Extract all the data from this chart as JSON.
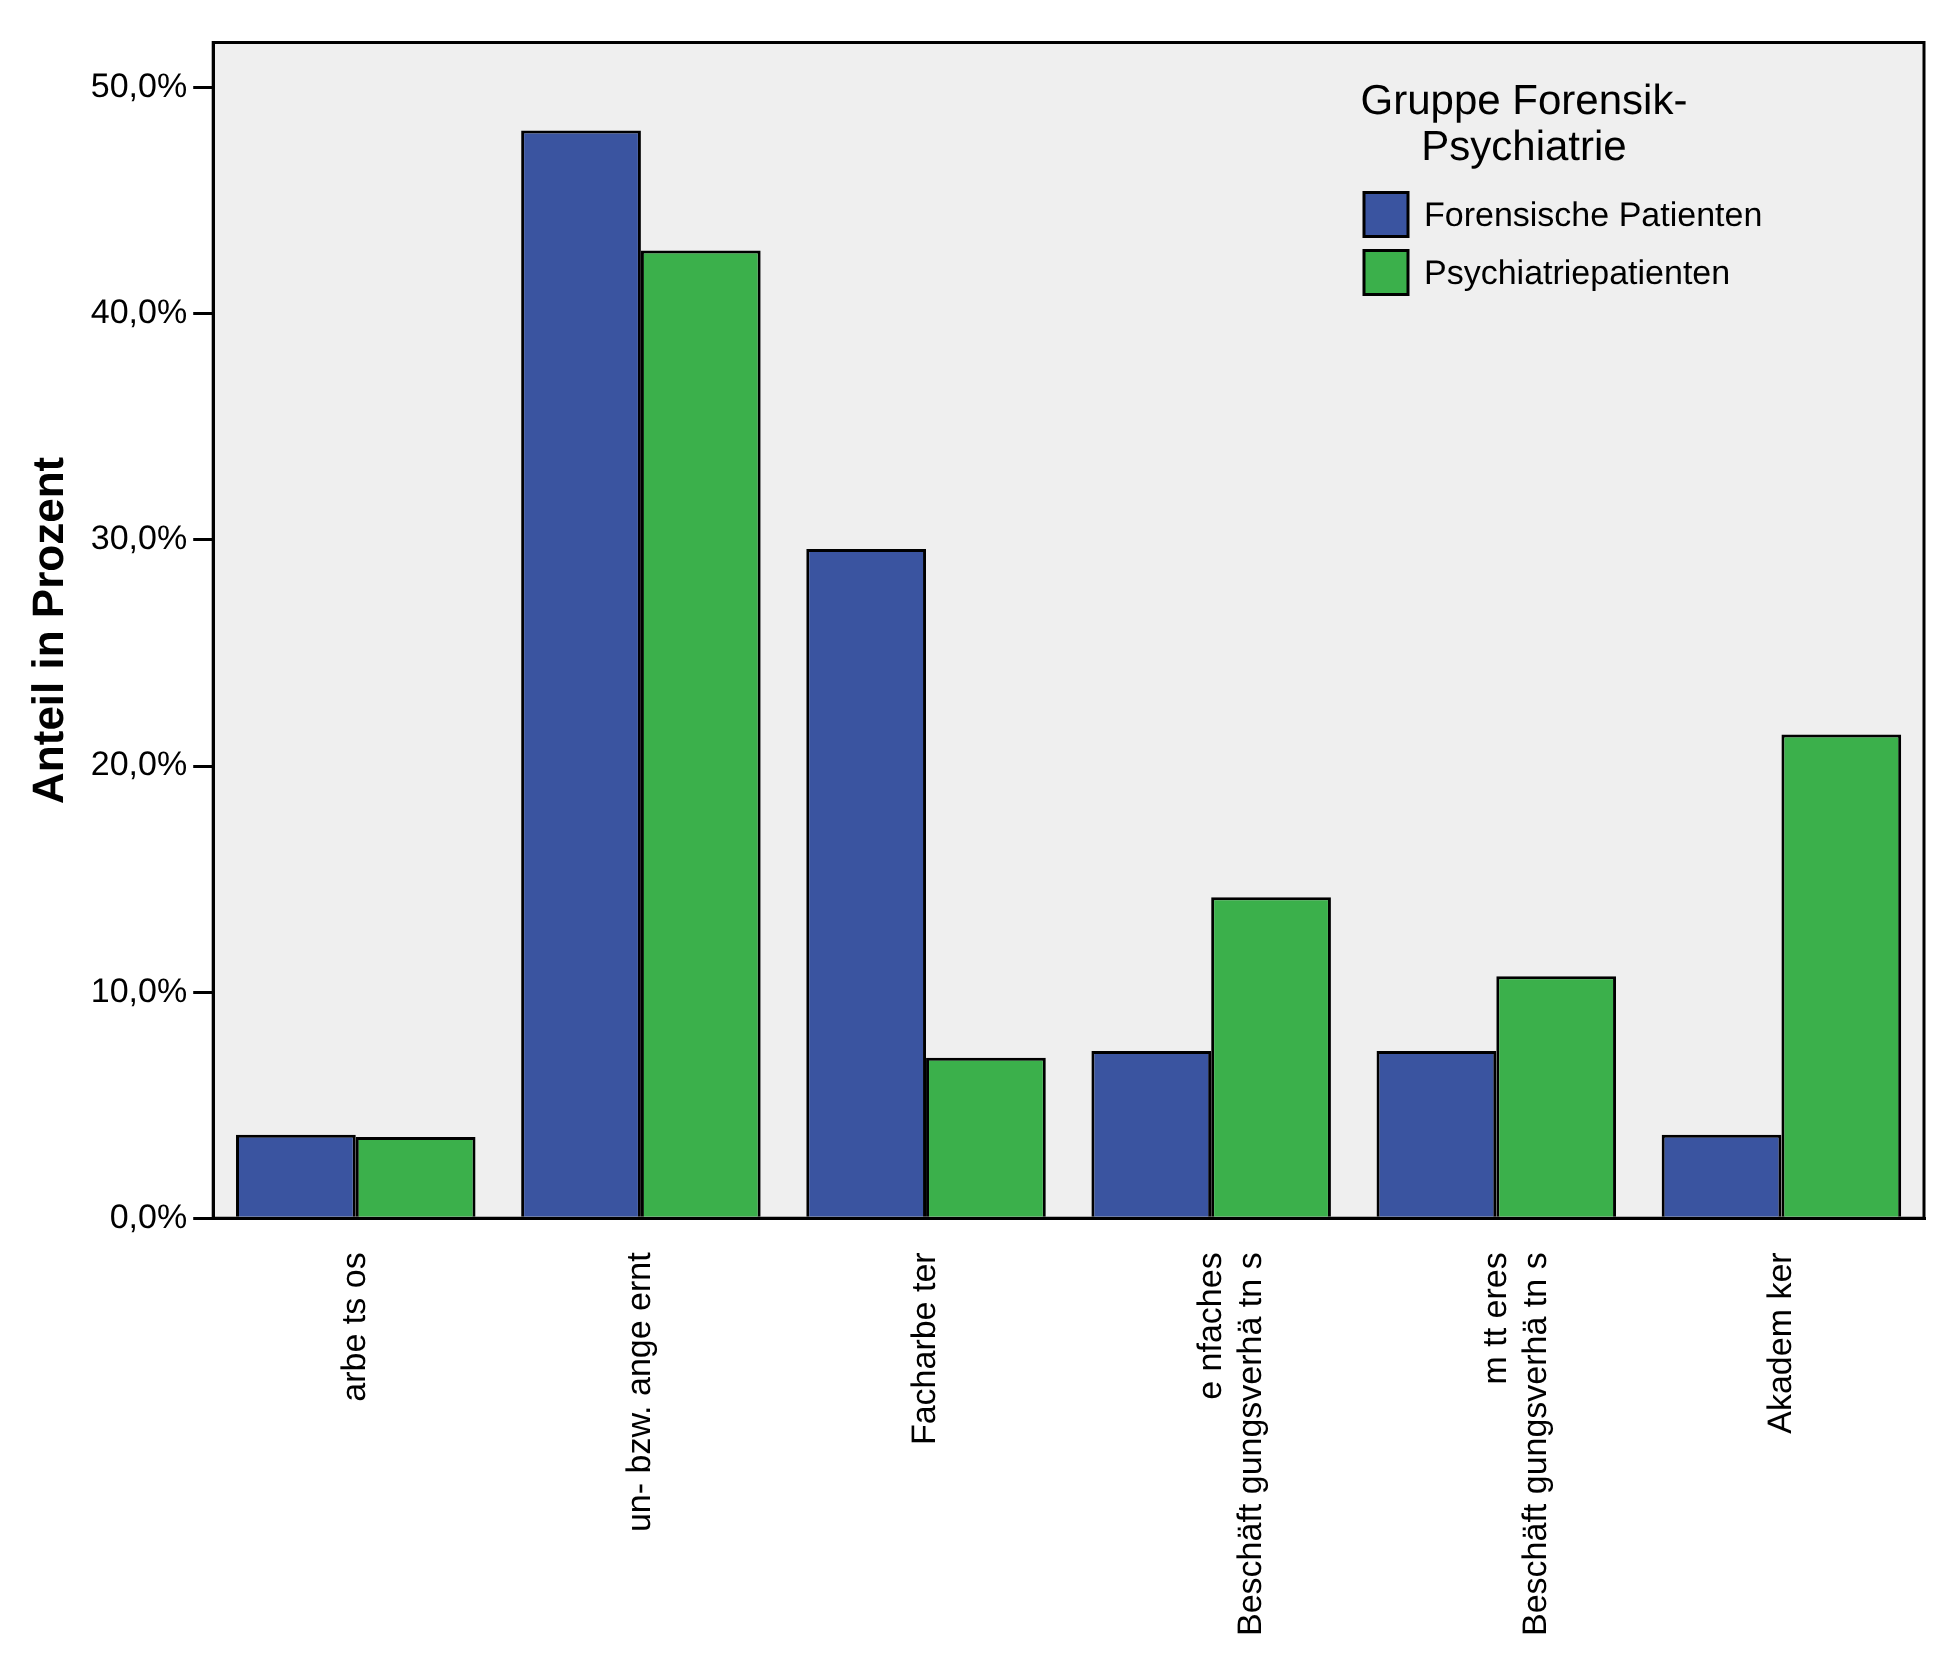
{
  "chart_data": {
    "type": "bar",
    "ylabel": "Anteil in Prozent",
    "legend_title": "Gruppe Forensik-Psychiatrie",
    "categories": [
      "arbe ts os",
      "un- bzw. ange ernt",
      "Facharbe ter",
      "e nfaches\nBeschäft gungsverhä tn s",
      "m tt eres\nBeschäft gungsverhä tn s",
      "Akadem ker"
    ],
    "series": [
      {
        "name": "Forensische Patienten",
        "color": "#3a54a0",
        "values": [
          3.7,
          48.1,
          29.6,
          7.4,
          7.4,
          3.7
        ]
      },
      {
        "name": "Psychiatriepatienten",
        "color": "#3bb04b",
        "values": [
          3.6,
          42.8,
          7.1,
          14.2,
          10.7,
          21.4
        ]
      }
    ],
    "ylim": [
      0,
      52
    ],
    "yticks": [
      {
        "value": 0,
        "label": "0,0%"
      },
      {
        "value": 10,
        "label": "10,0%"
      },
      {
        "value": 20,
        "label": "20,0%"
      },
      {
        "value": 30,
        "label": "30,0%"
      },
      {
        "value": 40,
        "label": "40,0%"
      },
      {
        "value": 50,
        "label": "50,0%"
      }
    ],
    "grid": false,
    "legend": "top right"
  }
}
